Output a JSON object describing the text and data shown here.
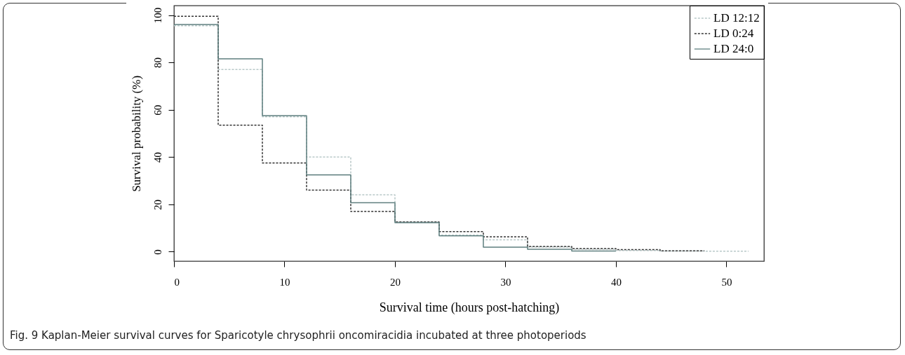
{
  "chart_data": {
    "type": "step",
    "xlabel": "Survival time (hours post-hatching)",
    "ylabel": "Survival probability (%)",
    "xlim": [
      0,
      53.4
    ],
    "ylim": [
      -4,
      104
    ],
    "xticks": [
      0,
      10,
      20,
      30,
      40,
      50
    ],
    "yticks": [
      0,
      20,
      40,
      60,
      80,
      100
    ],
    "grid": false,
    "legend": "top right",
    "series": [
      {
        "name": "LD 12:12",
        "color": "#b8c8c8",
        "line_style": "dashed",
        "x": [
          0,
          4,
          8,
          12,
          16,
          20,
          24,
          28,
          32,
          36,
          40,
          44,
          48,
          52
        ],
        "values": [
          95.5,
          77,
          57,
          40,
          24,
          12.5,
          7,
          5,
          2,
          1,
          0.5,
          0.3,
          0.2,
          0.2
        ]
      },
      {
        "name": "LD 0:24",
        "color": "#333333",
        "line_style": "dashed",
        "x": [
          0,
          4,
          8,
          12,
          16,
          20,
          24,
          28,
          32,
          36,
          40,
          44,
          48
        ],
        "values": [
          99.5,
          53.5,
          37.5,
          26,
          17,
          12.6,
          8.5,
          6.3,
          2.2,
          1.3,
          0.9,
          0.4,
          0.4
        ]
      },
      {
        "name": "LD 24:0",
        "color": "#5f7f7f",
        "line_style": "solid",
        "x": [
          0,
          4,
          8,
          12,
          16,
          20,
          24,
          28,
          32,
          36,
          40
        ],
        "values": [
          96,
          81.5,
          57.5,
          32.5,
          20.7,
          12.3,
          6.7,
          1.9,
          1.0,
          0.3,
          0.3
        ]
      }
    ],
    "annotations": [
      "Fig. 9 Kaplan-Meier survival curves for Sparicotyle chrysophrii oncomiracidia incubated at three photoperiods"
    ]
  }
}
